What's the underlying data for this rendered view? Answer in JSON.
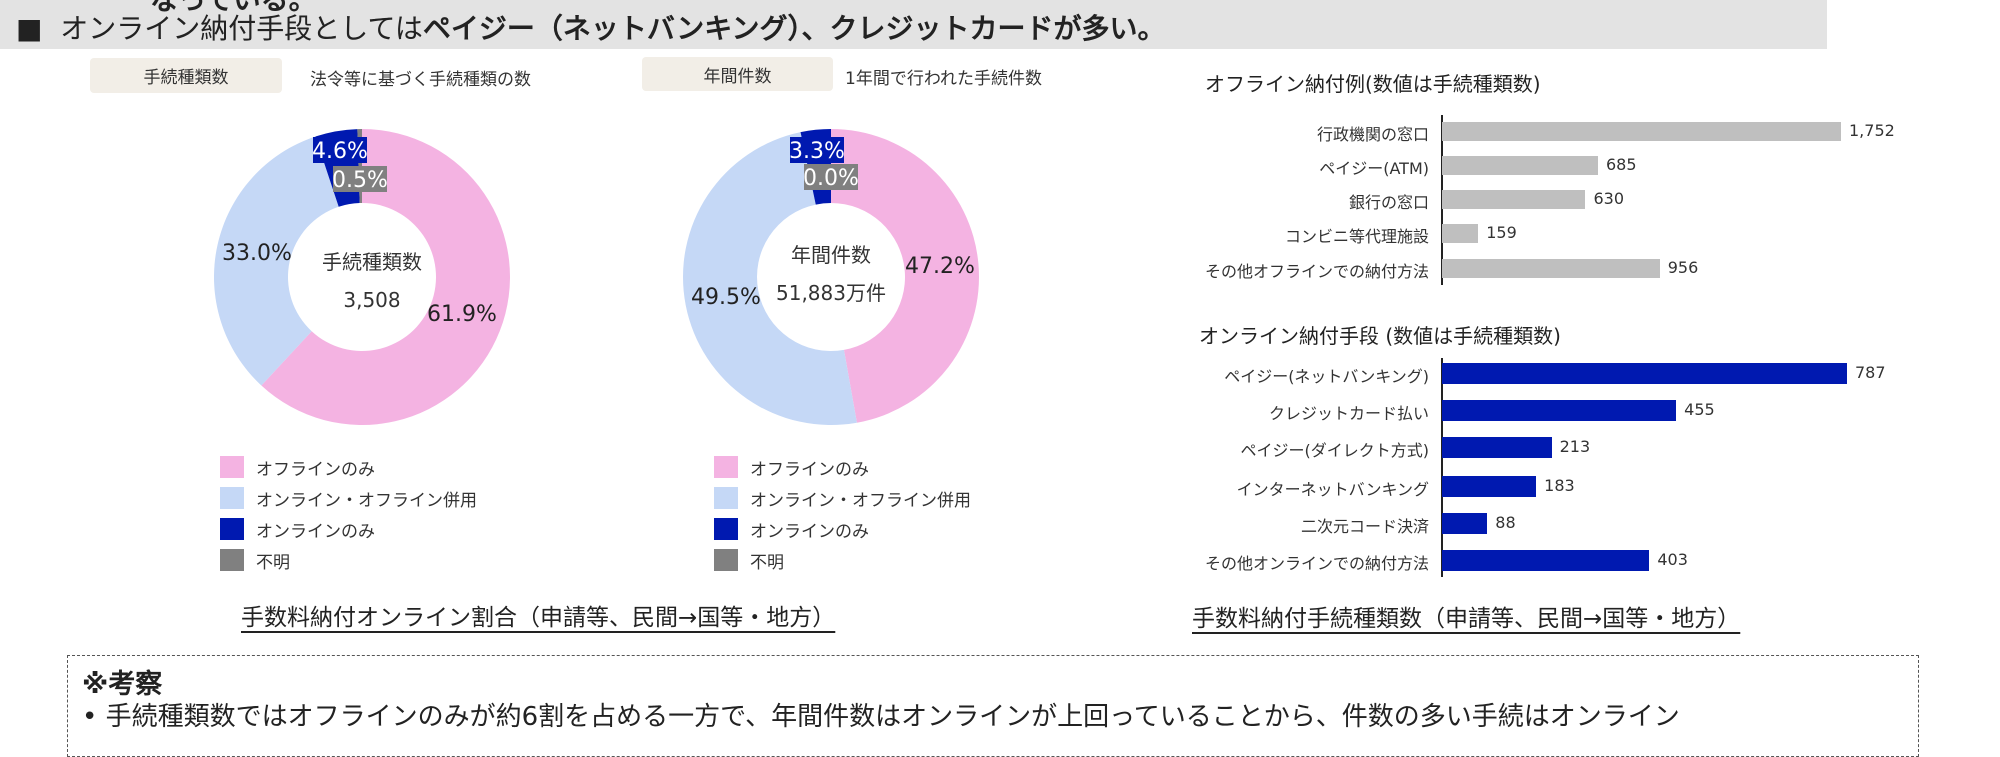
{
  "header": {
    "prev_line": "なっている。",
    "bullet": "■",
    "text_a": "オンライン納付手段としては",
    "text_bold1": "ペイジー（ネットバンキング）",
    "text_b": "、",
    "text_bold2": "クレジットカード",
    "text_c": "が多い。"
  },
  "tags": [
    {
      "label": "手続種類数",
      "desc": "法令等に基づく手続種類の数"
    },
    {
      "label": "年間件数",
      "desc": "1年間で行われた手続件数"
    }
  ],
  "legend": [
    "オフラインのみ",
    "オンライン・オフライン併用",
    "オンラインのみ",
    "不明"
  ],
  "colors": {
    "offline": "#f4b3e2",
    "both": "#c5d8f6",
    "online": "#0019b0",
    "unknown": "#808080",
    "offline_bar": "#bfbfbf",
    "header_bg": "#e3e3e3"
  },
  "chart_data": [
    {
      "type": "pie",
      "donut": true,
      "center_title": "手続種類数",
      "center_value": "3,508",
      "categories": [
        "オフラインのみ",
        "オンライン・オフライン併用",
        "オンラインのみ",
        "不明"
      ],
      "values": [
        61.9,
        33.0,
        4.6,
        0.5
      ],
      "labels": [
        "61.9%",
        "33.0%",
        "4.6%",
        "0.5%"
      ]
    },
    {
      "type": "pie",
      "donut": true,
      "center_title": "年間件数",
      "center_value": "51,883万件",
      "categories": [
        "オフラインのみ",
        "オンライン・オフライン併用",
        "オンラインのみ",
        "不明"
      ],
      "values": [
        47.2,
        49.5,
        3.3,
        0.0
      ],
      "labels": [
        "47.2%",
        "49.5%",
        "3.3%",
        "0.0%"
      ]
    },
    {
      "type": "bar",
      "orientation": "horizontal",
      "title": "オフライン納付例(数値は手続種類数)",
      "categories": [
        "行政機関の窓口",
        "ペイジー(ATM)",
        "銀行の窓口",
        "コンビニ等代理施設",
        "その他オフラインでの納付方法"
      ],
      "values": [
        1752,
        685,
        630,
        159,
        956
      ],
      "labels": [
        "1,752",
        "685",
        "630",
        "159",
        "956"
      ]
    },
    {
      "type": "bar",
      "orientation": "horizontal",
      "title": "オンライン納付手段 (数値は手続種類数)",
      "categories": [
        "ペイジー(ネットバンキング)",
        "クレジットカード払い",
        "ペイジー(ダイレクト方式)",
        "インターネットバンキング",
        "二次元コード決済",
        "その他オンラインでの納付方法"
      ],
      "values": [
        787,
        455,
        213,
        183,
        88,
        403
      ],
      "labels": [
        "787",
        "455",
        "213",
        "183",
        "88",
        "403"
      ]
    }
  ],
  "captions": {
    "left": "手数料納付オンライン割合（申請等、民間→国等・地方）",
    "right": "手数料納付手続種類数（申請等、民間→国等・地方）"
  },
  "consideration": {
    "title": "※考察",
    "bullet": "• 手続種類数ではオフラインのみが約6割を占める一方で、年間件数はオンラインが上回っていることから、件数の多い手続はオンライン"
  }
}
